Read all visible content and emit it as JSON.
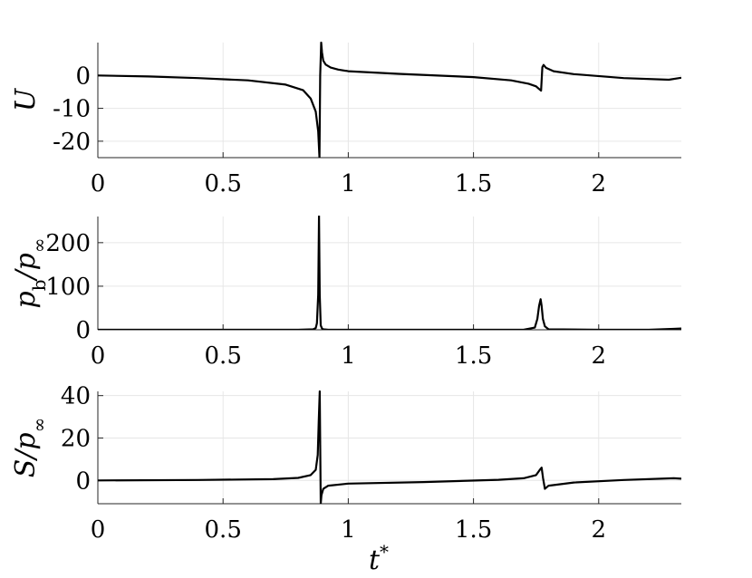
{
  "chart_data": [
    {
      "type": "line",
      "ylabel": "U",
      "xlabel": "",
      "xlim": [
        0,
        2.33
      ],
      "ylim": [
        -25,
        10
      ],
      "xticks": [
        0,
        0.5,
        1,
        1.5,
        2
      ],
      "xtick_labels": [
        "0",
        "0.5",
        "1",
        "1.5",
        "2"
      ],
      "yticks": [
        -20,
        -10,
        0
      ],
      "ytick_labels": [
        "-20",
        "-10",
        "0"
      ],
      "grid": true,
      "series": [
        {
          "color": "#000000",
          "x": [
            0,
            0.2,
            0.4,
            0.6,
            0.75,
            0.82,
            0.85,
            0.87,
            0.88,
            0.885,
            0.888,
            0.892,
            0.895,
            0.9,
            0.91,
            0.93,
            0.96,
            1.0,
            1.2,
            1.5,
            1.65,
            1.72,
            1.75,
            1.76,
            1.77,
            1.775,
            1.78,
            1.79,
            1.82,
            1.9,
            2.1,
            2.28,
            2.33
          ],
          "values": [
            0,
            -0.3,
            -0.8,
            -1.5,
            -2.8,
            -4.5,
            -7.0,
            -11.0,
            -17.0,
            -25.0,
            0,
            10.0,
            7.0,
            4.5,
            3.3,
            2.4,
            1.8,
            1.3,
            0.5,
            -0.5,
            -1.5,
            -2.5,
            -3.3,
            -4.0,
            -4.6,
            2.5,
            3.2,
            2.3,
            1.3,
            0.4,
            -0.8,
            -1.3,
            -0.7
          ]
        }
      ]
    },
    {
      "type": "line",
      "ylabel": "p_b/p_∞",
      "xlabel": "",
      "xlim": [
        0,
        2.33
      ],
      "ylim": [
        0,
        260
      ],
      "xticks": [
        0,
        0.5,
        1,
        1.5,
        2
      ],
      "xtick_labels": [
        "0",
        "0.5",
        "1",
        "1.5",
        "2"
      ],
      "yticks": [
        0,
        100,
        200
      ],
      "ytick_labels": [
        "0",
        "100",
        "200"
      ],
      "grid": true,
      "series": [
        {
          "color": "#000000",
          "x": [
            0,
            0.5,
            0.8,
            0.86,
            0.87,
            0.875,
            0.88,
            0.883,
            0.886,
            0.89,
            0.895,
            0.9,
            0.92,
            1.2,
            1.5,
            1.7,
            1.745,
            1.755,
            1.762,
            1.768,
            1.772,
            1.777,
            1.785,
            1.8,
            2.0,
            2.2,
            2.3,
            2.33
          ],
          "values": [
            0,
            0,
            0,
            1,
            4,
            15,
            80,
            262,
            80,
            10,
            3,
            1,
            0,
            0,
            0,
            0,
            5,
            25,
            55,
            70,
            55,
            25,
            8,
            1,
            0,
            0,
            2,
            3
          ]
        }
      ]
    },
    {
      "type": "line",
      "ylabel": "S/p_∞",
      "xlabel": "t*",
      "xlim": [
        0,
        2.33
      ],
      "ylim": [
        -11,
        42
      ],
      "xticks": [
        0,
        0.5,
        1,
        1.5,
        2
      ],
      "xtick_labels": [
        "0",
        "0.5",
        "1",
        "1.5",
        "2"
      ],
      "yticks": [
        0,
        20,
        40
      ],
      "ytick_labels": [
        "0",
        "20",
        "40"
      ],
      "grid": true,
      "series": [
        {
          "color": "#000000",
          "x": [
            0,
            0.4,
            0.7,
            0.8,
            0.85,
            0.87,
            0.878,
            0.882,
            0.886,
            0.89,
            0.893,
            0.9,
            0.92,
            1.0,
            1.3,
            1.6,
            1.7,
            1.75,
            1.765,
            1.772,
            1.778,
            1.785,
            1.8,
            1.9,
            2.1,
            2.3,
            2.33
          ],
          "values": [
            0,
            0.2,
            0.6,
            1.2,
            2.5,
            5.0,
            12.0,
            28.0,
            42.0,
            -11.0,
            -7.0,
            -4.0,
            -2.5,
            -1.5,
            -0.8,
            0.3,
            1.0,
            2.5,
            5.0,
            6.0,
            1.0,
            -4.0,
            -2.5,
            -1.0,
            0.2,
            1.0,
            0.8
          ]
        }
      ]
    }
  ]
}
